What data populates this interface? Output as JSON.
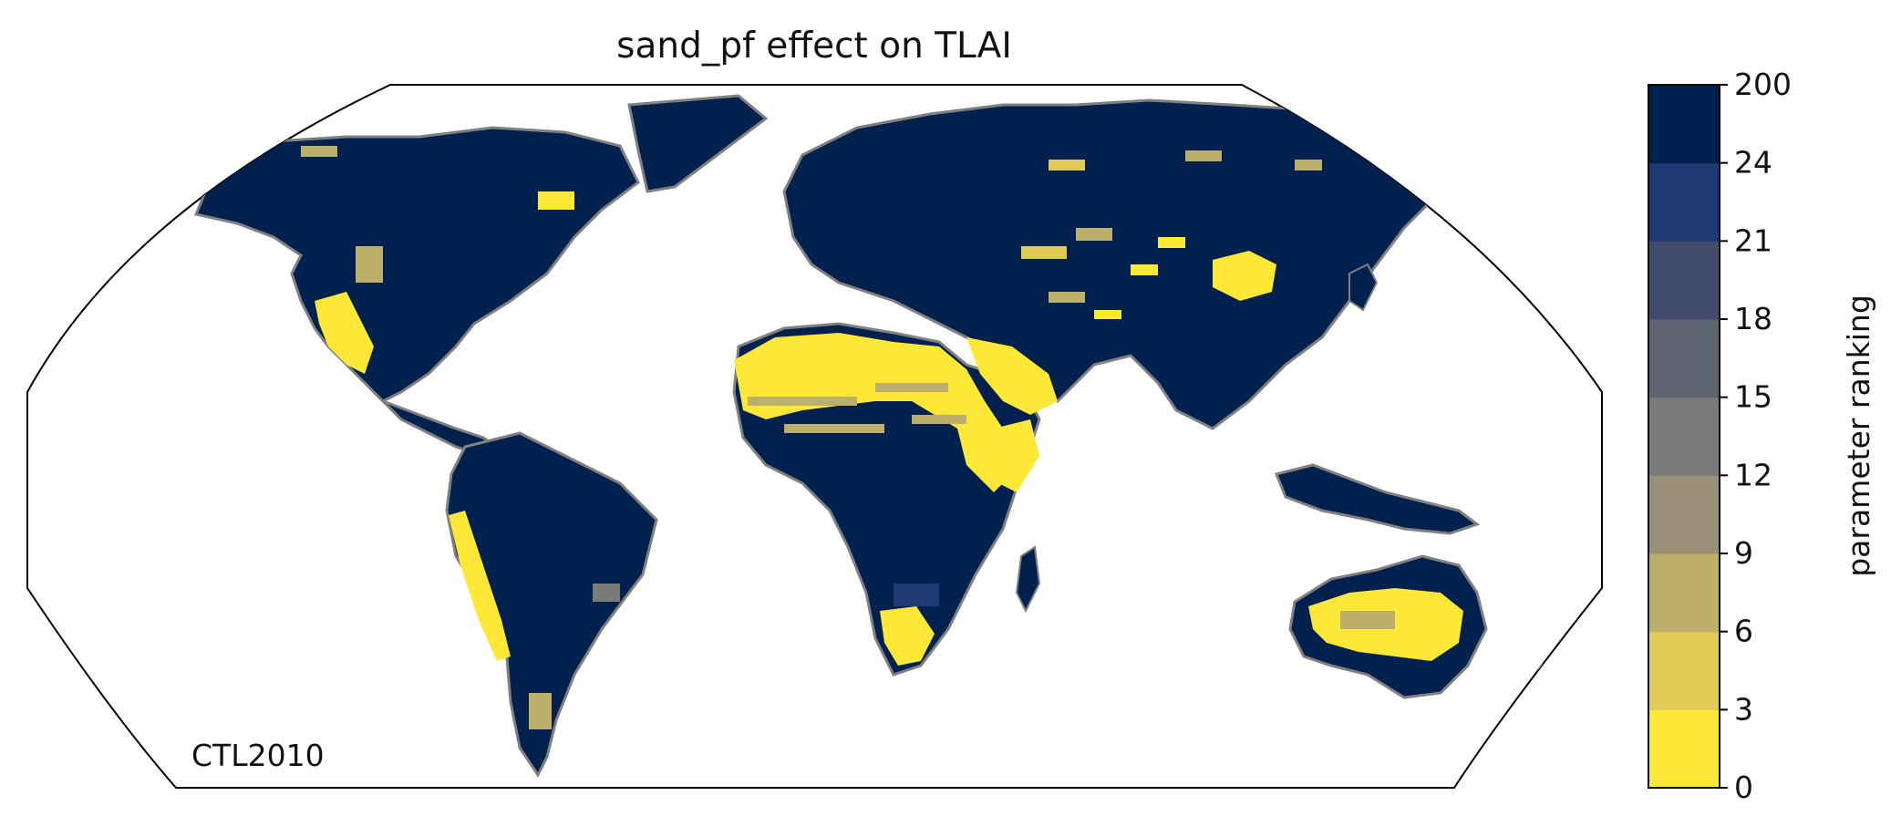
{
  "title": "sand_pf effect on TLAI",
  "panel_label": "CTL2010",
  "colorbar": {
    "label": "parameter ranking",
    "ticks": [
      "0",
      "3",
      "6",
      "9",
      "12",
      "15",
      "18",
      "21",
      "24",
      "200"
    ],
    "colors": [
      "#fde737",
      "#dfcb55",
      "#bcae6b",
      "#9a9077",
      "#7a7a78",
      "#5e6372",
      "#424b6c",
      "#1e3a74",
      "#00204d"
    ]
  },
  "map": {
    "projection": "Robinson",
    "land_color": "#00204d",
    "coastline_color": "#808080",
    "ocean_color": "#ffffff"
  }
}
